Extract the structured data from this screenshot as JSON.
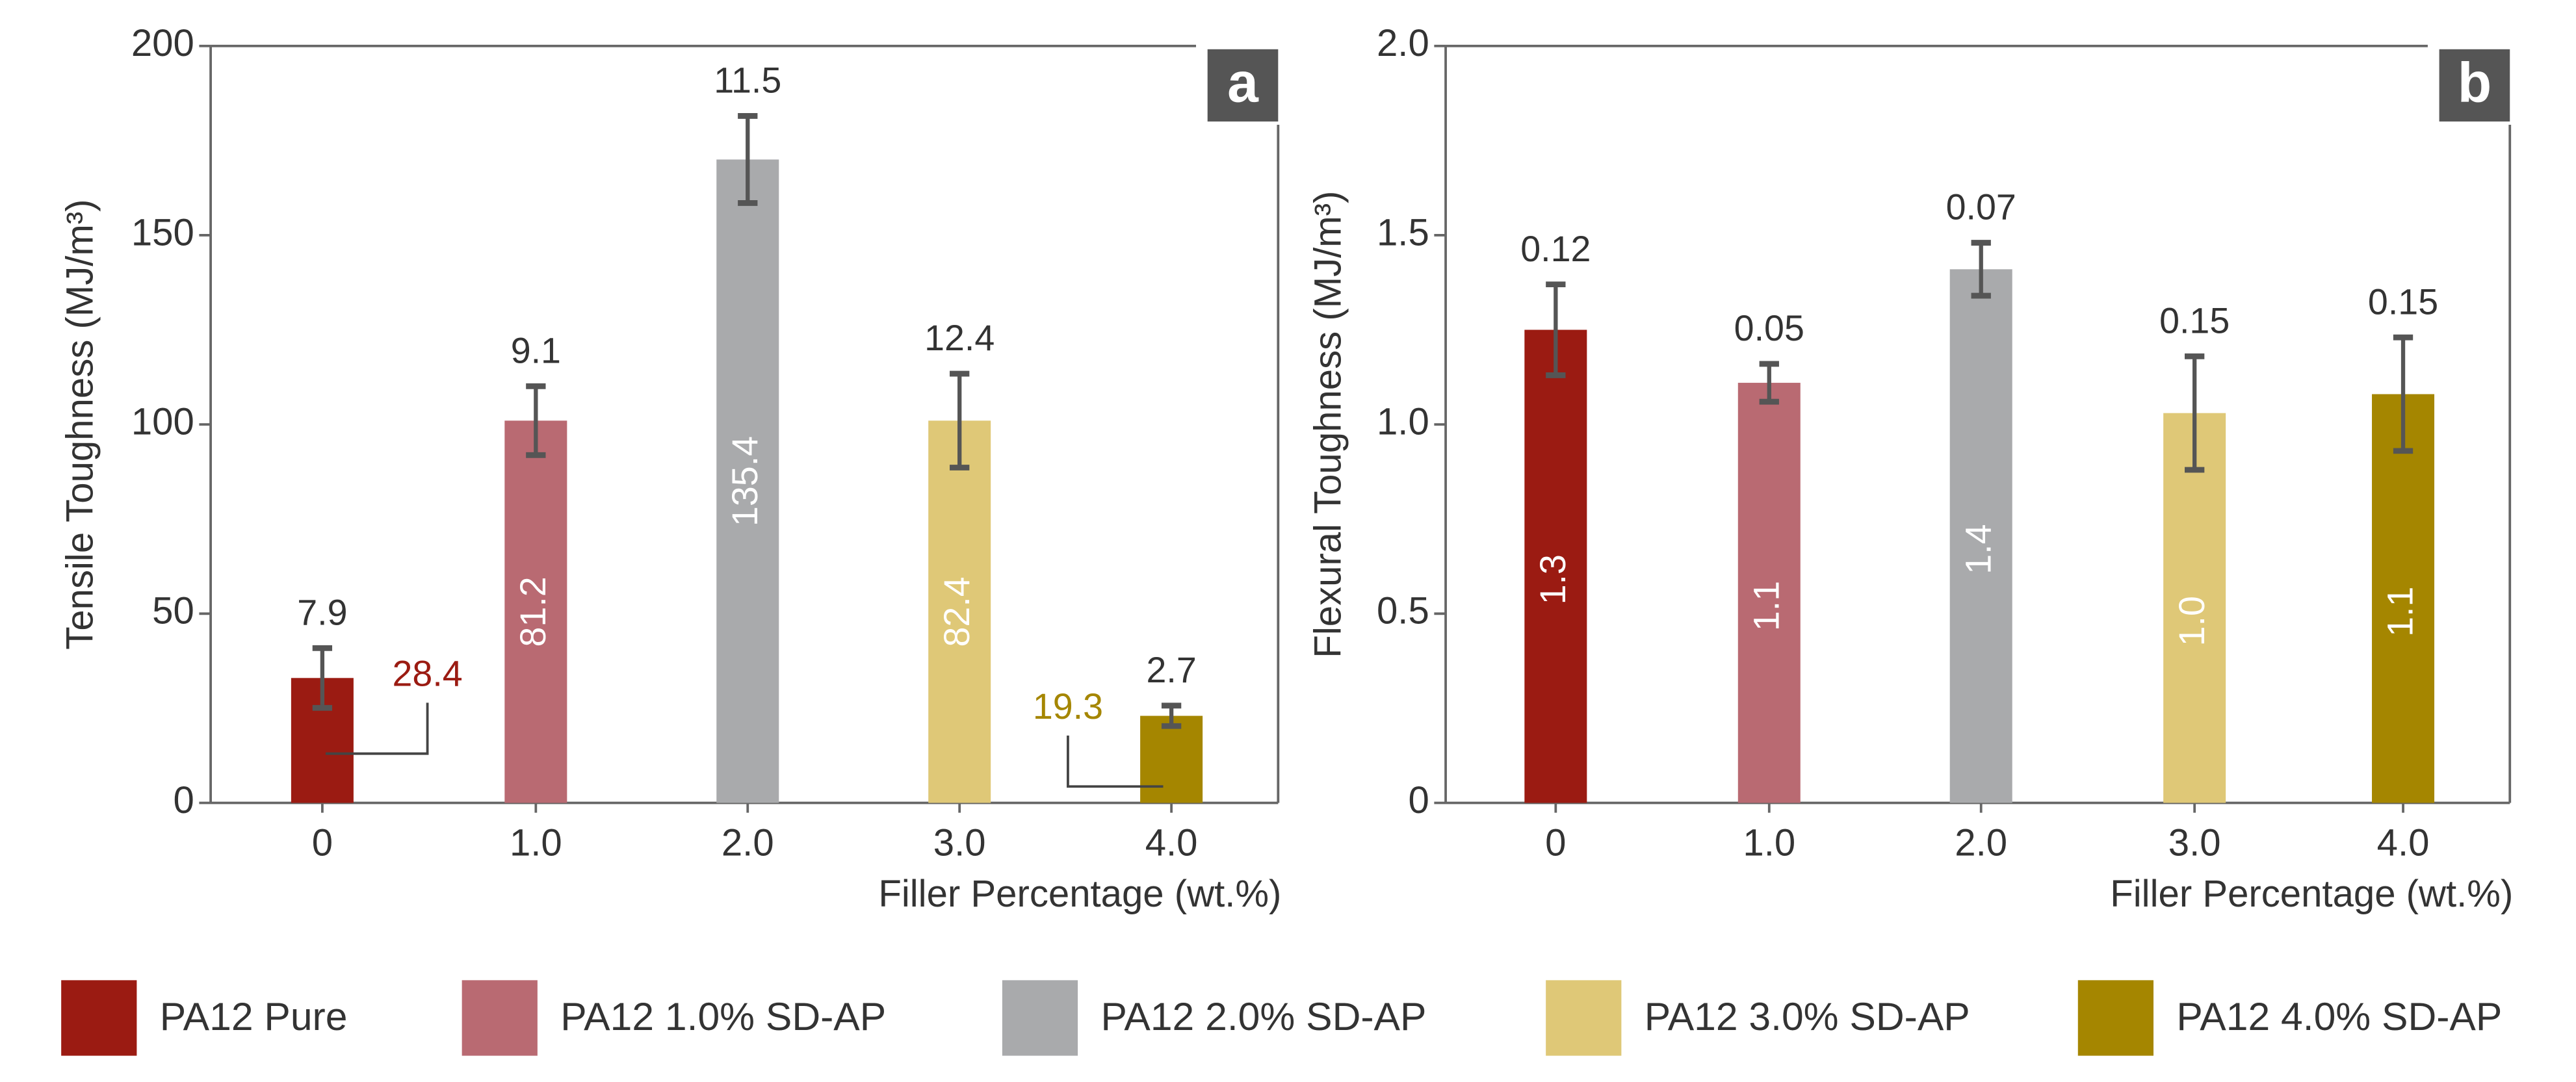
{
  "chart_data": [
    {
      "type": "bar",
      "panel_label": "a",
      "ylabel": "Tensile Toughness (MJ/m³)",
      "xlabel": "Filler Percentage (wt.%)",
      "categories": [
        "0",
        "1.0",
        "2.0",
        "3.0",
        "4.0"
      ],
      "values": [
        33,
        101,
        170,
        101,
        23
      ],
      "errors": [
        7.9,
        9.1,
        11.5,
        12.4,
        2.7
      ],
      "bar_annotations": [
        "28.4",
        "81.2",
        "135.4",
        "82.4",
        "19.3"
      ],
      "colors": [
        "#9b1b12",
        "#b96a72",
        "#a9aaac",
        "#dfc877",
        "#a58600"
      ],
      "ylim": [
        0,
        200
      ],
      "yticks": [
        0,
        50,
        100,
        150,
        200
      ]
    },
    {
      "type": "bar",
      "panel_label": "b",
      "ylabel": "Flexural Toughness (MJ/m³)",
      "xlabel": "Filler Percentage (wt.%)",
      "categories": [
        "0",
        "1.0",
        "2.0",
        "3.0",
        "4.0"
      ],
      "values": [
        1.25,
        1.11,
        1.41,
        1.03,
        1.08
      ],
      "value_labels": [
        "1.3",
        "1.1",
        "1.4",
        "1.0",
        "1.1"
      ],
      "errors": [
        0.12,
        0.05,
        0.07,
        0.15,
        0.15
      ],
      "colors": [
        "#9b1b12",
        "#b96a72",
        "#a9aaac",
        "#dfc877",
        "#a58600"
      ],
      "ylim": [
        0,
        2
      ],
      "yticks": [
        0,
        0.5,
        {
          "value": 1,
          "label": "1.0"
        },
        1.5,
        {
          "value": 2,
          "label": "2.0"
        }
      ]
    }
  ],
  "legend": [
    {
      "name": "PA12 Pure",
      "color": "#9b1b12"
    },
    {
      "name": "PA12 1.0% SD-AP",
      "color": "#b96a72"
    },
    {
      "name": "PA12 2.0% SD-AP",
      "color": "#a9aaac"
    },
    {
      "name": "PA12 3.0% SD-AP",
      "color": "#dfc877"
    },
    {
      "name": "PA12 4.0% SD-AP",
      "color": "#a58600"
    }
  ]
}
